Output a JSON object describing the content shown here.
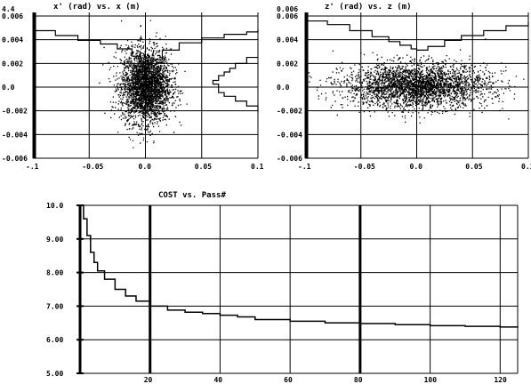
{
  "chart_data": [
    {
      "type": "scatter",
      "title": "x'  (rad)     vs.     x  (m)",
      "xlim": [
        -0.1,
        0.1
      ],
      "ylim": [
        -0.006,
        0.006
      ],
      "x_ticks": [
        "-.1",
        "-0.05",
        "0.0",
        "0.05",
        "0.1"
      ],
      "y_ticks": [
        "0.006",
        "0.004",
        "0.002",
        "0.0",
        "-0.002",
        "-0.004",
        "-0.006"
      ],
      "y_top_label": "4.4",
      "grid": true,
      "distribution": {
        "x_center": 0.0,
        "x_sigma": 0.011,
        "y_center": 0.0,
        "y_sigma": 0.0015,
        "points": 3000
      },
      "x_profile": [
        [
          -0.1,
          0.0045
        ],
        [
          -0.08,
          0.0041
        ],
        [
          -0.06,
          0.0037
        ],
        [
          -0.04,
          0.0034
        ],
        [
          -0.025,
          0.003
        ],
        [
          -0.012,
          0.0024
        ],
        [
          -0.004,
          0.0018
        ],
        [
          0.0,
          0.0017
        ],
        [
          0.006,
          0.0021
        ],
        [
          0.015,
          0.0029
        ],
        [
          0.03,
          0.0035
        ],
        [
          0.05,
          0.0039
        ],
        [
          0.07,
          0.0042
        ],
        [
          0.09,
          0.0044
        ],
        [
          0.1,
          0.0046
        ]
      ],
      "y_profile": [
        [
          0.1,
          0.0023
        ],
        [
          0.09,
          0.0018
        ],
        [
          0.08,
          0.0014
        ],
        [
          0.075,
          0.0011
        ],
        [
          0.07,
          0.0008
        ],
        [
          0.065,
          0.0004
        ],
        [
          0.06,
          0.0001
        ],
        [
          0.065,
          -0.0006
        ],
        [
          0.07,
          -0.0009
        ],
        [
          0.08,
          -0.0013
        ],
        [
          0.09,
          -0.0017
        ],
        [
          0.1,
          -0.0022
        ]
      ]
    },
    {
      "type": "scatter",
      "title": "z'  (rad)     vs.     z     (m)",
      "xlim": [
        -0.1,
        0.1
      ],
      "ylim": [
        -0.006,
        0.006
      ],
      "x_ticks": [
        "-.1",
        "-0.05",
        "0.0",
        "0.05",
        "0.1"
      ],
      "y_ticks": [
        "0.006",
        "0.004",
        "0.002",
        "0.0",
        "-0.002",
        "-0.004",
        "-0.006"
      ],
      "y_top_label": "0.006",
      "grid": true,
      "distribution": {
        "x_center": 0.0,
        "x_sigma": 0.032,
        "y_center": 0.0,
        "y_sigma": 0.0009,
        "points": 3000
      },
      "x_profile": [
        [
          -0.1,
          0.0053
        ],
        [
          -0.08,
          0.005
        ],
        [
          -0.06,
          0.0045
        ],
        [
          -0.04,
          0.004
        ],
        [
          -0.025,
          0.0036
        ],
        [
          -0.015,
          0.0033
        ],
        [
          -0.005,
          0.003
        ],
        [
          0.0,
          0.0029
        ],
        [
          0.01,
          0.0032
        ],
        [
          0.025,
          0.0037
        ],
        [
          0.04,
          0.0041
        ],
        [
          0.06,
          0.0045
        ],
        [
          0.08,
          0.0049
        ],
        [
          0.1,
          0.0052
        ]
      ]
    },
    {
      "type": "line",
      "title": "COST    vs.    Pass#",
      "xlim": [
        0,
        125
      ],
      "ylim": [
        5.0,
        10.0
      ],
      "x_ticks": [
        "20",
        "40",
        "60",
        "80",
        "100",
        "120"
      ],
      "y_ticks": [
        "10.0",
        "9.00",
        "8.00",
        "7.00",
        "6.00",
        "5.00"
      ],
      "grid": true,
      "points": [
        [
          0,
          10.0
        ],
        [
          1,
          9.6
        ],
        [
          2,
          9.1
        ],
        [
          3,
          8.6
        ],
        [
          4,
          8.3
        ],
        [
          5,
          8.05
        ],
        [
          7,
          7.8
        ],
        [
          10,
          7.5
        ],
        [
          13,
          7.3
        ],
        [
          16,
          7.15
        ],
        [
          20,
          7.0
        ],
        [
          25,
          6.88
        ],
        [
          30,
          6.82
        ],
        [
          35,
          6.78
        ],
        [
          40,
          6.73
        ],
        [
          45,
          6.68
        ],
        [
          50,
          6.6
        ],
        [
          60,
          6.55
        ],
        [
          70,
          6.5
        ],
        [
          80,
          6.48
        ],
        [
          90,
          6.45
        ],
        [
          100,
          6.42
        ],
        [
          110,
          6.4
        ],
        [
          120,
          6.38
        ],
        [
          125,
          6.36
        ]
      ]
    }
  ]
}
